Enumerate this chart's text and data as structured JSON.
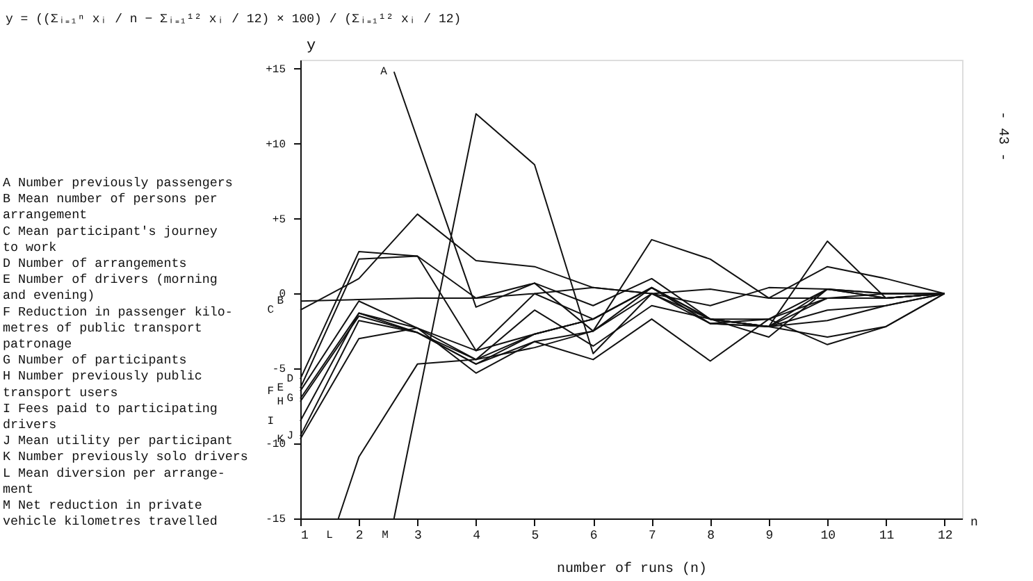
{
  "chart_data": {
    "type": "line",
    "xlabel": "number of runs (n)",
    "ylabel": "y",
    "x": [
      1,
      2,
      3,
      4,
      5,
      6,
      7,
      8,
      9,
      10,
      11,
      12
    ],
    "xlim": [
      1,
      12.3
    ],
    "xticks": [
      1,
      2,
      3,
      4,
      5,
      6,
      7,
      8,
      9,
      10,
      11,
      12
    ],
    "ylim": [
      -15,
      15.6
    ],
    "yticks": [
      {
        "value": 15,
        "label": "+15"
      },
      {
        "value": 10,
        "label": "+10"
      },
      {
        "value": 5,
        "label": "+5"
      },
      0,
      -5,
      -10,
      -15
    ],
    "grid": false,
    "legend": false,
    "marker": "none",
    "line_style": "solid",
    "series": [
      {
        "name": "A",
        "color": "#111111",
        "x": [
          2.6,
          4,
          5,
          6,
          7,
          8,
          9,
          10,
          11,
          12
        ],
        "values": [
          14.8,
          -0.9,
          0.7,
          -2.5,
          3.6,
          2.3,
          -0.3,
          1.8,
          1,
          0
        ]
      },
      {
        "name": "B",
        "color": "#111111",
        "values": [
          -0.5,
          -0.4,
          -0.3,
          -0.3,
          0,
          0.4,
          0,
          0.3,
          -0.3,
          -0.3,
          0,
          0
        ]
      },
      {
        "name": "C",
        "color": "#111111",
        "values": [
          -1.1,
          1,
          5.3,
          2.2,
          1.8,
          0.4,
          0,
          -0.8,
          0.4,
          0.3,
          -0.3,
          0
        ]
      },
      {
        "name": "D",
        "color": "#111111",
        "values": [
          -5.7,
          2.8,
          2.5,
          -0.3,
          0.7,
          -0.8,
          1,
          -1.7,
          -2.2,
          0.3,
          0,
          0
        ]
      },
      {
        "name": "E",
        "color": "#111111",
        "values": [
          -6.3,
          2.3,
          2.5,
          -3.8,
          0,
          -1.7,
          0.4,
          -1.7,
          -2.9,
          0.3,
          0,
          0
        ]
      },
      {
        "name": "F",
        "color": "#111111",
        "values": [
          -6.5,
          -0.5,
          -2.3,
          -4.4,
          -2.7,
          -1.7,
          0.4,
          -1.7,
          -2.2,
          -1.8,
          -0.8,
          0
        ]
      },
      {
        "name": "G",
        "color": "#111111",
        "values": [
          -7,
          -1.3,
          -2.6,
          -4.7,
          -2.7,
          -1.7,
          0.4,
          -2,
          -2.2,
          -0.3,
          -0.3,
          0
        ]
      },
      {
        "name": "H",
        "color": "#111111",
        "values": [
          -7.2,
          -1.5,
          -2.6,
          -4.7,
          -3.2,
          -2.5,
          0,
          -2,
          -2.2,
          -1.1,
          -0.8,
          0
        ]
      },
      {
        "name": "I",
        "color": "#111111",
        "values": [
          -8.5,
          -1.3,
          -2.3,
          -3.8,
          -2.7,
          -1.7,
          0.4,
          -1.7,
          -1.7,
          0.3,
          -0.3,
          0
        ]
      },
      {
        "name": "J",
        "color": "#111111",
        "values": [
          -9.5,
          -1.8,
          -2.6,
          -4.4,
          -1.1,
          -3.5,
          -0.8,
          -1.7,
          -2.2,
          -2.9,
          -2.2,
          0
        ]
      },
      {
        "name": "K",
        "color": "#111111",
        "values": [
          -9.7,
          -3,
          -2.3,
          -5.3,
          -3.2,
          -4.4,
          -1.7,
          -4.5,
          -1.7,
          -0.3,
          -0.3,
          0
        ]
      },
      {
        "name": "L",
        "color": "#111111",
        "x": [
          1.65,
          2,
          3,
          4,
          5,
          6,
          7,
          8,
          9,
          10,
          11,
          12
        ],
        "values": [
          -15,
          -10.9,
          -4.7,
          -4.4,
          -3.6,
          -2.5,
          0.4,
          -2,
          -1.7,
          -3.4,
          -2.2,
          0
        ]
      },
      {
        "name": "M",
        "color": "#111111",
        "x": [
          2.6,
          4,
          5,
          6,
          7,
          8,
          9,
          10,
          11,
          12
        ],
        "values": [
          -15,
          12,
          8.6,
          -4,
          0,
          -1.7,
          -2.2,
          3.5,
          -0.3,
          0
        ]
      }
    ],
    "annotations": [
      "y = ((Σᵢ₌₁ⁿ xᵢ / n − Σᵢ₌₁¹² xᵢ / 12) × 100) / (Σᵢ₌₁¹² xᵢ / 12)",
      "A  Number previously passengers",
      "B  Mean number of persons per\n   arrangement",
      "C  Mean participant's journey\n   to work",
      "D  Number of arrangements",
      "E  Number of drivers (morning\n   and evening)",
      "F  Reduction in passenger kilo-\n   metres of public transport\n   patronage",
      "G  Number of participants",
      "H  Number previously public\n   transport users",
      "I  Fees paid to participating\n   drivers",
      "J  Mean utility per participant",
      "K  Number previously solo drivers",
      "L  Mean diversion per arrange-\n   ment",
      "M  Net reduction in private\n   vehicle kilometres travelled",
      "- 43 -",
      "n"
    ]
  }
}
